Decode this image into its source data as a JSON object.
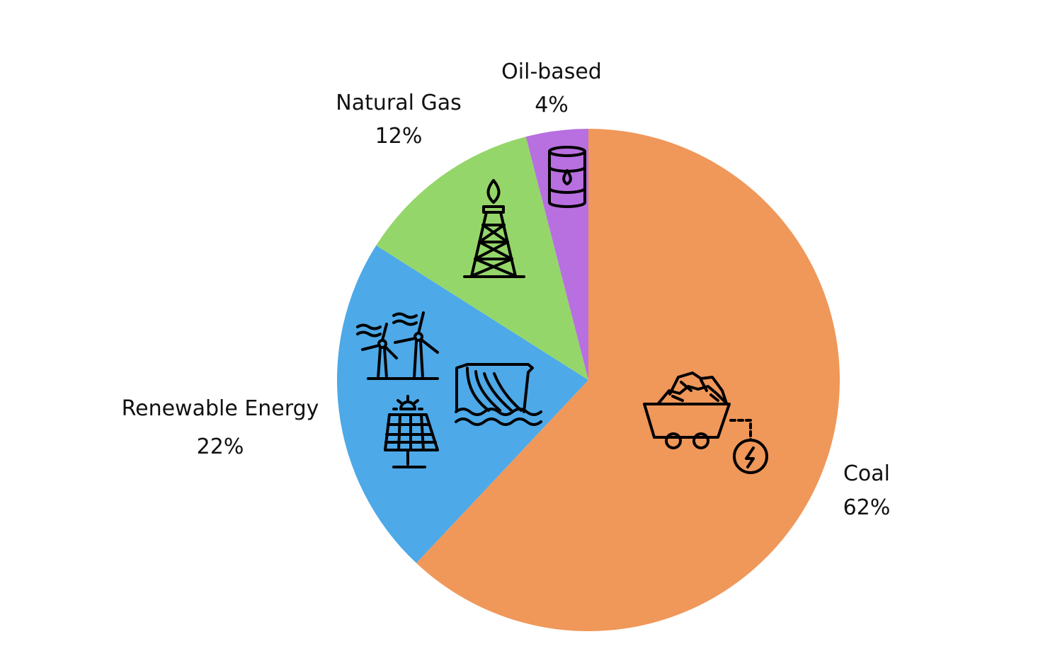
{
  "chart_data": {
    "type": "pie",
    "title": "",
    "start_angle_deg": 0,
    "direction": "clockwise",
    "slices": [
      {
        "label": "Coal",
        "value": 62,
        "value_label": "62%",
        "color": "#F0975A",
        "icon": "coal-cart-icon"
      },
      {
        "label": "Renewable Energy",
        "value": 22,
        "value_label": "22%",
        "color": "#4DA9E8",
        "icon": "renewables-icon"
      },
      {
        "label": "Natural Gas",
        "value": 12,
        "value_label": "12%",
        "color": "#95D66A",
        "icon": "gas-derrick-icon"
      },
      {
        "label": "Oil-based",
        "value": 4,
        "value_label": "4%",
        "color": "#B86FE0",
        "icon": "oil-barrel-icon"
      }
    ]
  }
}
